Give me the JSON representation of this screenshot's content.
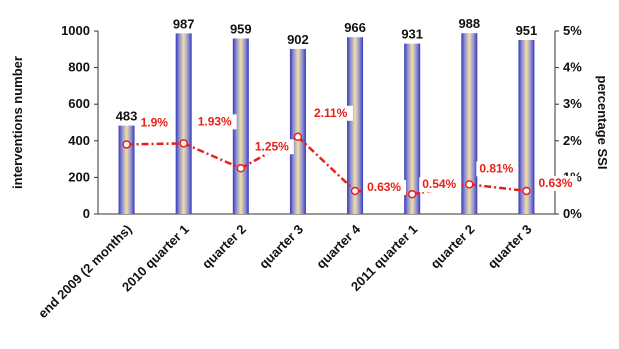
{
  "chart_data": {
    "type": "bar",
    "categories": [
      "end 2009 (2 months)",
      "2010 quarter 1",
      "quarter 2",
      "quarter 3",
      "quarter 4",
      "2011 quarter 1",
      "quarter 2",
      "quarter 3"
    ],
    "series": [
      {
        "type": "bar",
        "axis": "left",
        "values": [
          483,
          987,
          959,
          902,
          966,
          931,
          988,
          951
        ],
        "value_labels": [
          "483",
          "987",
          "959",
          "902",
          "966",
          "931",
          "988",
          "951"
        ]
      },
      {
        "type": "line",
        "axis": "right",
        "values": [
          1.9,
          1.93,
          1.25,
          2.11,
          0.63,
          0.54,
          0.81,
          0.63
        ],
        "value_labels": [
          "1.9%",
          "1.93%",
          "1.25%",
          "2.11%",
          "0.63%",
          "0.54%",
          "0.81%",
          "0.63%"
        ]
      }
    ],
    "ylabel": "interventions number",
    "ylabel_right": "percentage SSI",
    "ylim": [
      0,
      1000
    ],
    "yticks": [
      "0",
      "200",
      "400",
      "600",
      "800",
      "1000"
    ],
    "ylim_right": [
      0,
      5
    ],
    "yticks_right": [
      "0%",
      "1%",
      "2%",
      "3%",
      "4%",
      "5%"
    ],
    "grid": false,
    "legend": "none",
    "colors": {
      "bar_edge": "#3a3ab8",
      "bar_center": "#f0dca0",
      "line": "#e8201a",
      "label_text": "#e8201a"
    }
  }
}
